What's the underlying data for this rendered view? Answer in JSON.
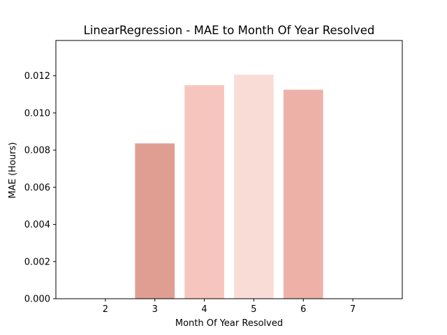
{
  "chart_data": {
    "type": "bar",
    "title": "LinearRegression - MAE to Month Of Year Resolved",
    "xlabel": "Month Of Year Resolved",
    "ylabel": "MAE (Hours)",
    "x_ticks": [
      2,
      3,
      4,
      5,
      6,
      7
    ],
    "x_tick_labels": [
      "2",
      "3",
      "4",
      "5",
      "6",
      "7"
    ],
    "xlim": [
      1,
      8
    ],
    "ylim": [
      0,
      0.0139
    ],
    "y_ticks": [
      0.0,
      0.002,
      0.004,
      0.006,
      0.008,
      0.01,
      0.012
    ],
    "y_tick_labels": [
      "0.000",
      "0.002",
      "0.004",
      "0.006",
      "0.008",
      "0.010",
      "0.012"
    ],
    "categories": [
      "3",
      "4",
      "5",
      "6"
    ],
    "x": [
      3,
      4,
      5,
      6
    ],
    "values": [
      0.00836,
      0.01149,
      0.01206,
      0.01125
    ],
    "bar_colors": [
      "#e09e93",
      "#f6c6be",
      "#f9dcd6",
      "#edb1a8"
    ],
    "grid": false,
    "legend": "none"
  }
}
